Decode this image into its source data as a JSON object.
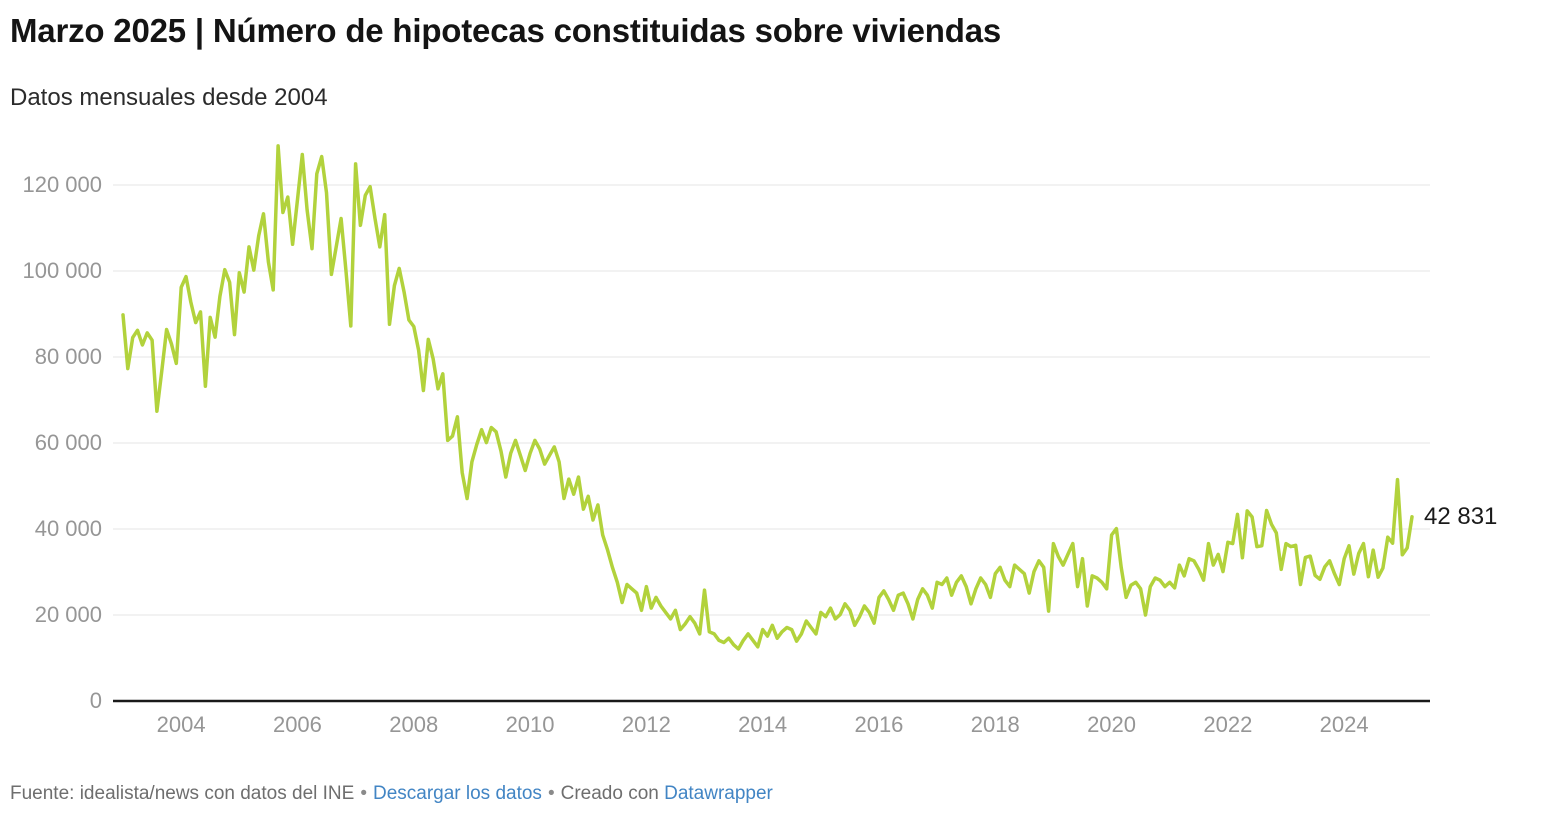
{
  "header": {
    "title": "Marzo 2025 | Número de hipotecas constituidas sobre viviendas",
    "subtitle": "Datos mensuales desde 2004"
  },
  "footer": {
    "source": "Fuente: idealista/news con datos del INE",
    "separator": "•",
    "download_label": "Descargar los datos",
    "created_with": "Creado con",
    "creator_label": "Datawrapper"
  },
  "colors": {
    "line": "#b2d23c",
    "grid": "#e4e4e4",
    "axis": "#1a1a1a",
    "tick_text": "#969696",
    "title": "#141414",
    "link": "#4285c4",
    "footer_text": "#6e6e6e",
    "end_label": "#1a1a1a"
  },
  "chart_data": {
    "type": "line",
    "title": "Marzo 2025 | Número de hipotecas constituidas sobre viviendas",
    "subtitle": "Datos mensuales desde 2004",
    "frequency": "monthly",
    "x_start": "2003-01",
    "x_end": "2025-03",
    "xlabel": "",
    "ylabel": "",
    "grid": true,
    "legend": "none",
    "ylim": [
      0,
      130500
    ],
    "y_ticks": [
      {
        "value": 0,
        "label": "0"
      },
      {
        "value": 20000,
        "label": "20 000"
      },
      {
        "value": 40000,
        "label": "40 000"
      },
      {
        "value": 60000,
        "label": "60 000"
      },
      {
        "value": 80000,
        "label": "80 000"
      },
      {
        "value": 100000,
        "label": "100 000"
      },
      {
        "value": 120000,
        "label": "120 000"
      }
    ],
    "x_tick_years": [
      2004,
      2006,
      2008,
      2010,
      2012,
      2014,
      2016,
      2018,
      2020,
      2022,
      2024
    ],
    "end_label": "42 831",
    "last_point": {
      "date": "2025-03",
      "value": 42831
    },
    "values": [
      89800,
      77300,
      84500,
      86200,
      82800,
      85600,
      83900,
      67400,
      76800,
      86400,
      83000,
      78500,
      96200,
      98700,
      92800,
      88000,
      90500,
      73200,
      89200,
      84600,
      94100,
      100300,
      97400,
      85200,
      99600,
      95100,
      105600,
      100200,
      108200,
      113300,
      102100,
      95600,
      129100,
      113600,
      117200,
      106200,
      116600,
      127100,
      114200,
      105200,
      122600,
      126600,
      118200,
      99200,
      105600,
      112200,
      100200,
      87200,
      124900,
      110600,
      117600,
      119600,
      112200,
      105600,
      113100,
      87600,
      96600,
      100600,
      95100,
      88600,
      87100,
      81600,
      72200,
      84100,
      79600,
      72600,
      76100,
      60600,
      61600,
      66100,
      53100,
      47100,
      55600,
      59600,
      63100,
      60100,
      63600,
      62600,
      58100,
      52100,
      57600,
      60600,
      57100,
      53600,
      57600,
      60600,
      58600,
      55100,
      57100,
      59100,
      55600,
      47100,
      51600,
      48100,
      52100,
      44600,
      47600,
      42100,
      45600,
      38600,
      35100,
      31100,
      27600,
      22900,
      27100,
      26100,
      25100,
      21100,
      26600,
      21600,
      24100,
      22100,
      20600,
      19100,
      21100,
      16600,
      17900,
      19600,
      18100,
      15600,
      25800,
      16100,
      15600,
      14100,
      13600,
      14600,
      13100,
      12100,
      14100,
      15600,
      14100,
      12600,
      16600,
      15100,
      17600,
      14600,
      16100,
      17100,
      16600,
      13900,
      15600,
      18600,
      17100,
      15600,
      20600,
      19600,
      21600,
      19100,
      20100,
      22600,
      21100,
      17600,
      19600,
      22100,
      20600,
      18100,
      24100,
      25600,
      23600,
      21100,
      24600,
      25100,
      22600,
      19100,
      23600,
      26100,
      24600,
      21600,
      27600,
      27100,
      28600,
      24600,
      27600,
      29100,
      26600,
      22600,
      26100,
      28600,
      27100,
      24100,
      29600,
      31100,
      28100,
      26600,
      31600,
      30600,
      29600,
      25100,
      30100,
      32600,
      31100,
      20900,
      36600,
      33600,
      31600,
      34100,
      36600,
      26600,
      33100,
      22100,
      29100,
      28600,
      27600,
      26100,
      38600,
      40100,
      31100,
      24100,
      26900,
      27600,
      26100,
      20000,
      26600,
      28600,
      28100,
      26600,
      27600,
      26300,
      31600,
      29100,
      33100,
      32600,
      30600,
      28100,
      36600,
      31600,
      34100,
      30100,
      36900,
      36600,
      43400,
      33300,
      44200,
      42800,
      35900,
      36100,
      44300,
      41100,
      39100,
      30600,
      36600,
      35900,
      36200,
      27100,
      33400,
      33700,
      29200,
      28300,
      31200,
      32600,
      29600,
      27100,
      33100,
      36100,
      29500,
      34300,
      36600,
      28900,
      35100,
      28800,
      30900,
      38100,
      36700,
      51500,
      34000,
      35600,
      42831
    ]
  }
}
